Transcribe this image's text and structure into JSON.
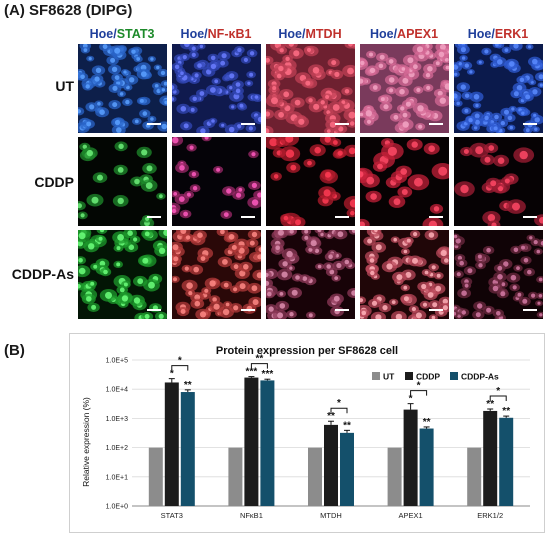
{
  "panel_a": {
    "label": "(A) SF8628 (DIPG)",
    "columns": [
      {
        "hoe": "Hoe",
        "sep": "/",
        "marker": "STAT3",
        "marker_color": "#1d8a2a"
      },
      {
        "hoe": "Hoe",
        "sep": "/",
        "marker": "NF-κB1",
        "marker_color": "#c0312c"
      },
      {
        "hoe": "Hoe",
        "sep": "/",
        "marker": "MTDH",
        "marker_color": "#c0312c"
      },
      {
        "hoe": "Hoe",
        "sep": "/",
        "marker": "APEX1",
        "marker_color": "#c0312c"
      },
      {
        "hoe": "Hoe",
        "sep": "/",
        "marker": "ERK1",
        "marker_color": "#c0312c"
      }
    ],
    "rows": [
      "UT",
      "CDDP",
      "CDDP-As"
    ]
  },
  "panel_b": {
    "label": "(B)"
  },
  "chart_data": {
    "type": "bar",
    "title": "Protein expression per SF8628 cell",
    "ylabel": "Relative expression (%)",
    "xlabel": "",
    "yscale": "log",
    "ylim": [
      1,
      100000
    ],
    "yticks": [
      "1.0E+0",
      "1.0E+1",
      "1.0E+2",
      "1.0E+3",
      "1.0E+4",
      "1.0E+5"
    ],
    "categories": [
      "STAT3",
      "NFκB1",
      "MTDH",
      "APEX1",
      "ERK1/2"
    ],
    "legend_position": "top-right",
    "series": [
      {
        "name": "UT",
        "color": "#8c8c8c",
        "values": [
          100,
          100,
          100,
          100,
          100
        ],
        "errors": [
          0,
          0,
          0,
          0,
          0
        ],
        "stars": [
          "",
          "",
          "",
          "",
          ""
        ]
      },
      {
        "name": "CDDP",
        "color": "#1c1c1c",
        "values": [
          17000,
          25000,
          600,
          2000,
          1800
        ],
        "errors": [
          6000,
          2000,
          200,
          1200,
          300
        ],
        "stars": [
          "*",
          "***",
          "**",
          "*",
          "**"
        ]
      },
      {
        "name": "CDDP-As",
        "color": "#14506b",
        "values": [
          8000,
          20000,
          320,
          450,
          1050
        ],
        "errors": [
          1500,
          2000,
          70,
          60,
          150
        ],
        "stars": [
          "**",
          "***",
          "**",
          "**",
          "**"
        ]
      }
    ],
    "comparison_stars": [
      "*",
      "**",
      "*",
      "*",
      "*"
    ],
    "colors": {
      "grid": "#d9d9d9",
      "axis": "#8a8a8a"
    }
  }
}
